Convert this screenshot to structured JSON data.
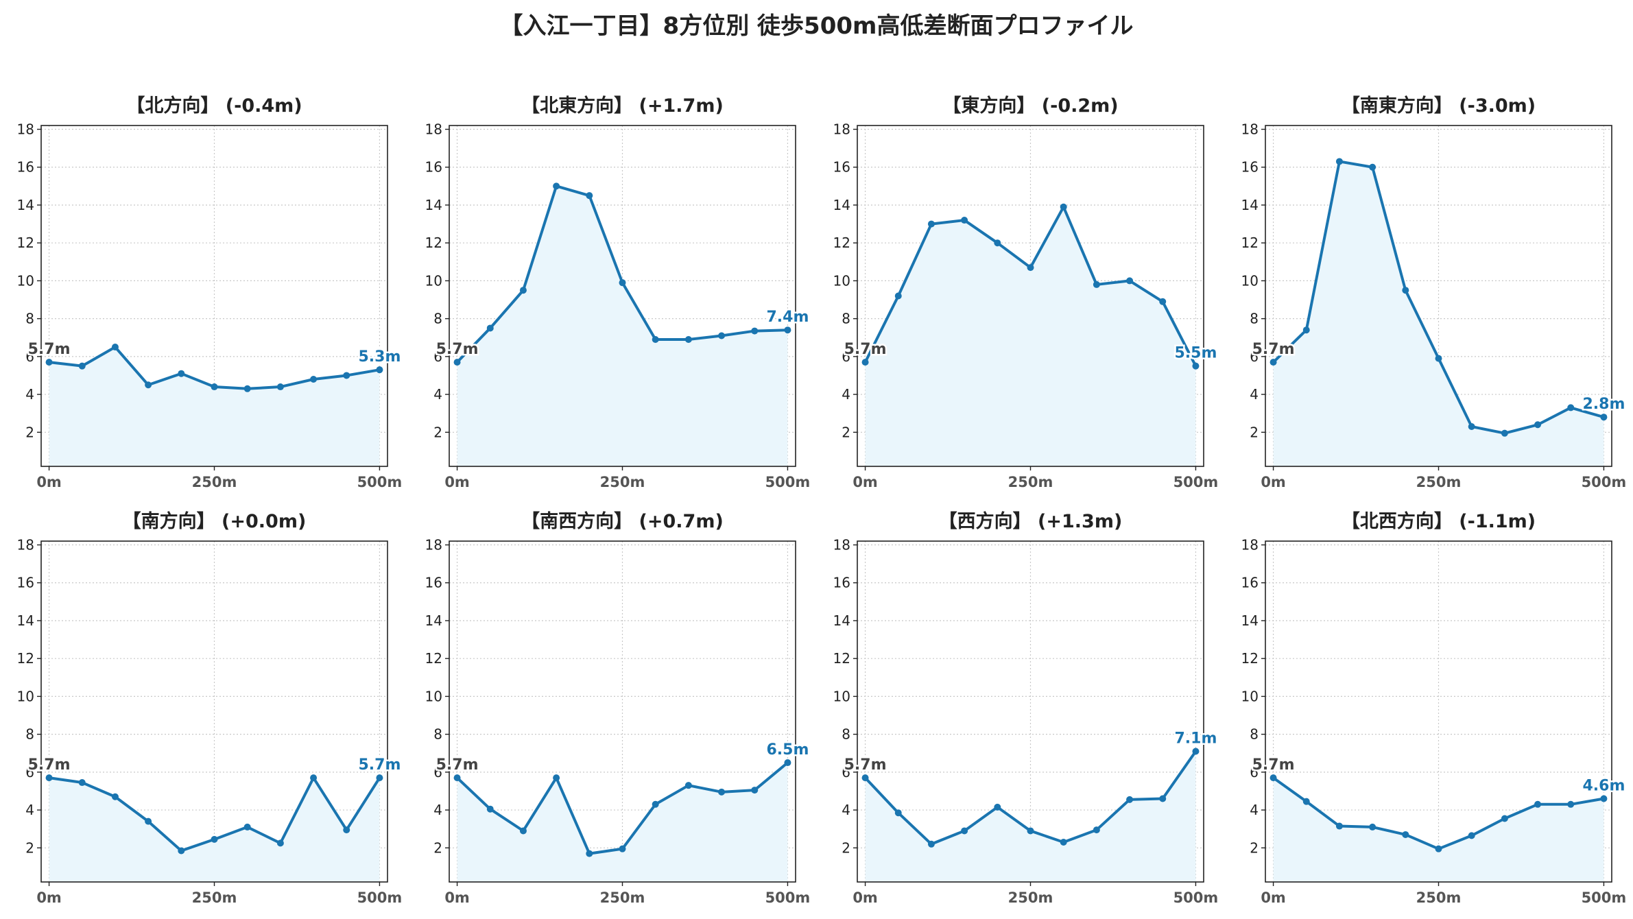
{
  "title": "【入江一丁目】8方位別 徒歩500m高低差断面プロファイル",
  "style": {
    "line_color": "#1a75b0",
    "fill_color": "#eaf6fc",
    "grid_color": "#c8c8c8"
  },
  "chart_data": [
    {
      "type": "line",
      "title": "【北方向】 (-0.4m)",
      "x": [
        0,
        50,
        100,
        150,
        200,
        250,
        300,
        350,
        400,
        450,
        500
      ],
      "values": [
        5.7,
        5.5,
        6.5,
        4.5,
        5.1,
        4.4,
        4.3,
        4.4,
        4.8,
        5.0,
        5.3
      ],
      "start_label": "5.7m",
      "end_label": "5.3m",
      "xticks": [
        0,
        250,
        500
      ],
      "xtick_labels": [
        "0m",
        "250m",
        "500m"
      ],
      "yticks": [
        2,
        4,
        6,
        8,
        10,
        12,
        14,
        16,
        18
      ],
      "ylim": [
        0.2,
        18.2
      ],
      "xlim": [
        -12,
        512
      ],
      "grid": true
    },
    {
      "type": "line",
      "title": "【北東方向】 (+1.7m)",
      "x": [
        0,
        50,
        100,
        150,
        200,
        250,
        300,
        350,
        400,
        450,
        500
      ],
      "values": [
        5.7,
        7.5,
        9.5,
        15.0,
        14.5,
        9.9,
        6.9,
        6.9,
        7.1,
        7.35,
        7.4
      ],
      "start_label": "5.7m",
      "end_label": "7.4m",
      "xticks": [
        0,
        250,
        500
      ],
      "xtick_labels": [
        "0m",
        "250m",
        "500m"
      ],
      "yticks": [
        2,
        4,
        6,
        8,
        10,
        12,
        14,
        16,
        18
      ],
      "ylim": [
        0.2,
        18.2
      ],
      "xlim": [
        -12,
        512
      ],
      "grid": true
    },
    {
      "type": "line",
      "title": "【東方向】 (-0.2m)",
      "x": [
        0,
        50,
        100,
        150,
        200,
        250,
        300,
        350,
        400,
        450,
        500
      ],
      "values": [
        5.7,
        9.2,
        13.0,
        13.2,
        12.0,
        10.7,
        13.9,
        9.8,
        10.0,
        8.9,
        5.5
      ],
      "start_label": "5.7m",
      "end_label": "5.5m",
      "xticks": [
        0,
        250,
        500
      ],
      "xtick_labels": [
        "0m",
        "250m",
        "500m"
      ],
      "yticks": [
        2,
        4,
        6,
        8,
        10,
        12,
        14,
        16,
        18
      ],
      "ylim": [
        0.2,
        18.2
      ],
      "xlim": [
        -12,
        512
      ],
      "grid": true
    },
    {
      "type": "line",
      "title": "【南東方向】 (-3.0m)",
      "x": [
        0,
        50,
        100,
        150,
        200,
        250,
        300,
        350,
        400,
        450,
        500
      ],
      "values": [
        5.7,
        7.4,
        16.3,
        16.0,
        9.5,
        5.9,
        2.3,
        1.95,
        2.4,
        3.3,
        2.8
      ],
      "start_label": "5.7m",
      "end_label": "2.8m",
      "xticks": [
        0,
        250,
        500
      ],
      "xtick_labels": [
        "0m",
        "250m",
        "500m"
      ],
      "yticks": [
        2,
        4,
        6,
        8,
        10,
        12,
        14,
        16,
        18
      ],
      "ylim": [
        0.2,
        18.2
      ],
      "xlim": [
        -12,
        512
      ],
      "grid": true
    },
    {
      "type": "line",
      "title": "【南方向】 (+0.0m)",
      "x": [
        0,
        50,
        100,
        150,
        200,
        250,
        300,
        350,
        400,
        450,
        500
      ],
      "values": [
        5.7,
        5.45,
        4.7,
        3.4,
        1.85,
        2.45,
        3.1,
        2.25,
        5.7,
        2.95,
        5.7
      ],
      "start_label": "5.7m",
      "end_label": "5.7m",
      "xticks": [
        0,
        250,
        500
      ],
      "xtick_labels": [
        "0m",
        "250m",
        "500m"
      ],
      "yticks": [
        2,
        4,
        6,
        8,
        10,
        12,
        14,
        16,
        18
      ],
      "ylim": [
        0.2,
        18.2
      ],
      "xlim": [
        -12,
        512
      ],
      "grid": true
    },
    {
      "type": "line",
      "title": "【南西方向】 (+0.7m)",
      "x": [
        0,
        50,
        100,
        150,
        200,
        250,
        300,
        350,
        400,
        450,
        500
      ],
      "values": [
        5.7,
        4.05,
        2.9,
        5.7,
        1.7,
        1.95,
        4.3,
        5.3,
        4.95,
        5.05,
        6.5
      ],
      "start_label": "5.7m",
      "end_label": "6.5m",
      "xticks": [
        0,
        250,
        500
      ],
      "xtick_labels": [
        "0m",
        "250m",
        "500m"
      ],
      "yticks": [
        2,
        4,
        6,
        8,
        10,
        12,
        14,
        16,
        18
      ],
      "ylim": [
        0.2,
        18.2
      ],
      "xlim": [
        -12,
        512
      ],
      "grid": true
    },
    {
      "type": "line",
      "title": "【西方向】 (+1.3m)",
      "x": [
        0,
        50,
        100,
        150,
        200,
        250,
        300,
        350,
        400,
        450,
        500
      ],
      "values": [
        5.7,
        3.85,
        2.2,
        2.9,
        4.15,
        2.9,
        2.3,
        2.95,
        4.55,
        4.6,
        7.1
      ],
      "start_label": "5.7m",
      "end_label": "7.1m",
      "xticks": [
        0,
        250,
        500
      ],
      "xtick_labels": [
        "0m",
        "250m",
        "500m"
      ],
      "yticks": [
        2,
        4,
        6,
        8,
        10,
        12,
        14,
        16,
        18
      ],
      "ylim": [
        0.2,
        18.2
      ],
      "xlim": [
        -12,
        512
      ],
      "grid": true
    },
    {
      "type": "line",
      "title": "【北西方向】 (-1.1m)",
      "x": [
        0,
        50,
        100,
        150,
        200,
        250,
        300,
        350,
        400,
        450,
        500
      ],
      "values": [
        5.7,
        4.45,
        3.15,
        3.1,
        2.7,
        1.95,
        2.65,
        3.55,
        4.3,
        4.3,
        4.6
      ],
      "start_label": "5.7m",
      "end_label": "4.6m",
      "xticks": [
        0,
        250,
        500
      ],
      "xtick_labels": [
        "0m",
        "250m",
        "500m"
      ],
      "yticks": [
        2,
        4,
        6,
        8,
        10,
        12,
        14,
        16,
        18
      ],
      "ylim": [
        0.2,
        18.2
      ],
      "xlim": [
        -12,
        512
      ],
      "grid": true
    }
  ]
}
